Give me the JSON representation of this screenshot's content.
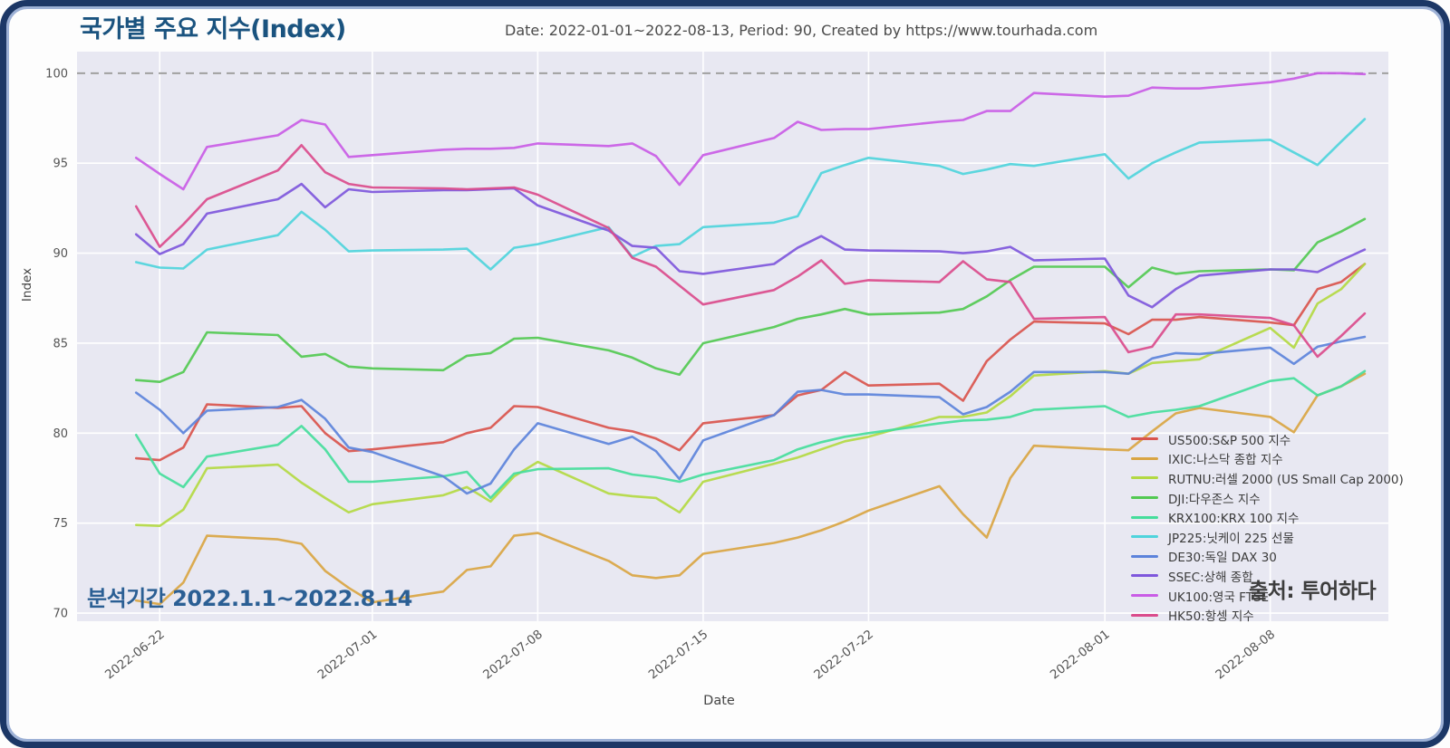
{
  "header": {
    "title": "국가별 주요 지수(Index)",
    "subtitle": "Date: 2022-01-01~2022-08-13, Period: 90, Created by https://www.tourhada.com"
  },
  "annotations": {
    "period": "분석기간 2022.1.1~2022.8.14",
    "source": "출처: 투어하다"
  },
  "colors": {
    "frame": "#1c3766",
    "frame_inner": "#9db1d6",
    "plot_bg": "#e8e8f2",
    "grid": "#ffffff",
    "dashed_line": "#a0a0a0",
    "tick_text": "#555555",
    "title_text": "#1a537f"
  },
  "chart_data": {
    "type": "line",
    "title": "국가별 주요 지수(Index)",
    "xlabel": "Date",
    "ylabel": "Index",
    "grid": true,
    "legend_position": "right-bottom",
    "ylim": [
      69.55,
      101.2
    ],
    "xlim_days": [
      -2.5,
      53.0
    ],
    "yticks": [
      70,
      75,
      80,
      85,
      90,
      95,
      100
    ],
    "xticks": [
      "2022-06-22",
      "2022-07-01",
      "2022-07-08",
      "2022-07-15",
      "2022-07-22",
      "2022-08-01",
      "2022-08-08"
    ],
    "reference_line_y": 100,
    "x": [
      "2022-06-21",
      "2022-06-22",
      "2022-06-23",
      "2022-06-24",
      "2022-06-27",
      "2022-06-28",
      "2022-06-29",
      "2022-06-30",
      "2022-07-01",
      "2022-07-04",
      "2022-07-05",
      "2022-07-06",
      "2022-07-07",
      "2022-07-08",
      "2022-07-11",
      "2022-07-12",
      "2022-07-13",
      "2022-07-14",
      "2022-07-15",
      "2022-07-18",
      "2022-07-19",
      "2022-07-20",
      "2022-07-21",
      "2022-07-22",
      "2022-07-25",
      "2022-07-26",
      "2022-07-27",
      "2022-07-28",
      "2022-07-29",
      "2022-08-01",
      "2022-08-02",
      "2022-08-03",
      "2022-08-04",
      "2022-08-05",
      "2022-08-08",
      "2022-08-09",
      "2022-08-10",
      "2022-08-11",
      "2022-08-12"
    ],
    "series": [
      {
        "name": "US500:S&P 500 지수",
        "color": "#d9544d",
        "values": [
          78.6,
          78.5,
          79.2,
          81.6,
          81.4,
          81.5,
          80.0,
          79.0,
          79.1,
          79.5,
          80.0,
          80.3,
          81.5,
          81.45,
          80.3,
          80.1,
          79.7,
          79.05,
          80.55,
          81.0,
          82.1,
          82.4,
          83.4,
          82.65,
          82.75,
          81.8,
          84.0,
          85.2,
          86.2,
          86.1,
          85.5,
          86.3,
          86.3,
          86.45,
          86.15,
          86.0,
          88.0,
          88.4,
          89.4
        ]
      },
      {
        "name": "IXIC:나스닥 종합 지수",
        "color": "#d9a543",
        "values": [
          70.7,
          70.5,
          71.7,
          74.3,
          74.1,
          73.85,
          72.35,
          71.4,
          70.6,
          71.2,
          72.4,
          72.6,
          74.3,
          74.45,
          72.9,
          72.1,
          71.95,
          72.1,
          73.3,
          73.9,
          74.2,
          74.6,
          75.1,
          75.7,
          77.05,
          75.5,
          74.2,
          77.5,
          79.3,
          79.1,
          79.05,
          80.1,
          81.1,
          81.4,
          80.9,
          80.05,
          82.1,
          82.6,
          83.3
        ]
      },
      {
        "name": "RUTNU:러셀 2000 (US Small Cap 2000)",
        "color": "#b3d943",
        "values": [
          74.9,
          74.85,
          75.75,
          78.05,
          78.25,
          77.25,
          76.4,
          75.6,
          76.05,
          76.55,
          77.0,
          76.2,
          77.6,
          78.4,
          76.65,
          76.5,
          76.4,
          75.6,
          77.3,
          78.3,
          78.65,
          79.1,
          79.55,
          79.8,
          80.9,
          80.9,
          81.15,
          82.05,
          83.2,
          83.45,
          83.3,
          83.9,
          84.0,
          84.1,
          85.85,
          84.75,
          87.2,
          88.0,
          89.4
        ]
      },
      {
        "name": "DJI:다우존스 지수",
        "color": "#52c952",
        "values": [
          82.95,
          82.85,
          83.4,
          85.6,
          85.45,
          84.25,
          84.4,
          83.7,
          83.6,
          83.5,
          84.3,
          84.45,
          85.25,
          85.3,
          84.6,
          84.2,
          83.6,
          83.25,
          85.0,
          85.9,
          86.35,
          86.6,
          86.9,
          86.6,
          86.7,
          86.9,
          87.6,
          88.5,
          89.25,
          89.25,
          88.1,
          89.2,
          88.85,
          89.0,
          89.1,
          89.05,
          90.6,
          91.2,
          91.9
        ]
      },
      {
        "name": "KRX100:KRX 100 지수",
        "color": "#45dd9c",
        "values": [
          79.9,
          77.75,
          77.0,
          78.7,
          79.35,
          80.4,
          79.1,
          77.3,
          77.3,
          77.6,
          77.85,
          76.4,
          77.75,
          78.0,
          78.05,
          77.7,
          77.55,
          77.3,
          77.7,
          78.5,
          79.1,
          79.5,
          79.8,
          80.0,
          80.55,
          80.7,
          80.75,
          80.9,
          81.3,
          81.5,
          80.9,
          81.15,
          81.3,
          81.5,
          82.9,
          83.05,
          82.1,
          82.6,
          83.45
        ]
      },
      {
        "name": "JP225:닛케이 225 선물",
        "color": "#4fd4dc",
        "values": [
          89.5,
          89.2,
          89.15,
          90.2,
          91.0,
          92.3,
          91.3,
          90.1,
          90.15,
          90.2,
          90.25,
          89.1,
          90.3,
          90.5,
          91.45,
          89.8,
          90.4,
          90.5,
          91.45,
          91.7,
          92.05,
          94.45,
          94.9,
          95.3,
          94.85,
          94.4,
          94.65,
          94.95,
          94.85,
          95.5,
          94.15,
          95.0,
          95.6,
          96.15,
          96.3,
          95.6,
          94.9,
          96.2,
          97.45
        ]
      },
      {
        "name": "DE30:독일 DAX 30",
        "color": "#5c83db",
        "values": [
          82.25,
          81.3,
          80.0,
          81.25,
          81.45,
          81.85,
          80.8,
          79.2,
          78.95,
          77.6,
          76.65,
          77.2,
          79.1,
          80.55,
          79.4,
          79.8,
          79.0,
          77.45,
          79.6,
          81.0,
          82.3,
          82.4,
          82.15,
          82.15,
          82.0,
          81.05,
          81.45,
          82.3,
          83.4,
          83.4,
          83.3,
          84.15,
          84.45,
          84.4,
          84.75,
          83.85,
          84.8,
          85.1,
          85.35
        ]
      },
      {
        "name": "SSEC:상해 종합",
        "color": "#7e57dc",
        "values": [
          91.05,
          89.95,
          90.5,
          92.2,
          93.0,
          93.85,
          92.55,
          93.55,
          93.4,
          93.5,
          93.5,
          93.55,
          93.6,
          92.65,
          91.25,
          90.4,
          90.3,
          89.0,
          88.85,
          89.4,
          90.3,
          90.95,
          90.2,
          90.15,
          90.1,
          90.0,
          90.1,
          90.35,
          89.6,
          89.7,
          87.65,
          87.0,
          88.0,
          88.75,
          89.1,
          89.1,
          88.95,
          89.6,
          90.2
        ]
      },
      {
        "name": "UK100:영국 FTSE",
        "color": "#c95ce6",
        "values": [
          95.3,
          94.4,
          93.55,
          95.9,
          96.55,
          97.4,
          97.15,
          95.35,
          95.45,
          95.75,
          95.8,
          95.8,
          95.85,
          96.1,
          95.95,
          96.1,
          95.4,
          93.8,
          95.45,
          96.4,
          97.3,
          96.85,
          96.9,
          96.9,
          97.3,
          97.4,
          97.9,
          97.9,
          98.9,
          98.7,
          98.75,
          99.2,
          99.15,
          99.15,
          99.5,
          99.7,
          100.0,
          100.0,
          99.95
        ]
      },
      {
        "name": "HK50:항셍 지수",
        "color": "#da4b8c",
        "values": [
          92.6,
          90.35,
          91.6,
          93.0,
          94.6,
          96.0,
          94.5,
          93.85,
          93.65,
          93.6,
          93.55,
          93.6,
          93.65,
          93.25,
          91.4,
          89.75,
          89.25,
          88.2,
          87.15,
          87.95,
          88.7,
          89.6,
          88.3,
          88.5,
          88.4,
          89.55,
          88.55,
          88.4,
          86.35,
          86.45,
          84.5,
          84.8,
          86.6,
          86.6,
          86.4,
          86.0,
          84.25,
          85.4,
          86.65
        ]
      }
    ]
  }
}
